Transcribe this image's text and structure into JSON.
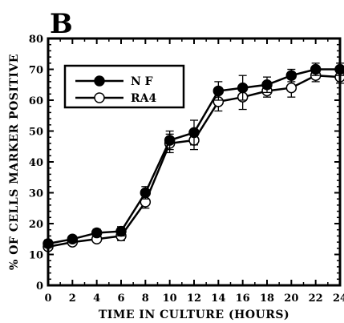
{
  "panel_letter": "B",
  "chart_data": {
    "type": "line",
    "title": "",
    "xlabel": "TIME IN CULTURE (HOURS)",
    "ylabel": "% OF CELLS MARKER POSITIVE",
    "xlim": [
      0,
      24
    ],
    "ylim": [
      0,
      80
    ],
    "x_ticks": [
      0,
      2,
      4,
      6,
      8,
      10,
      12,
      14,
      16,
      18,
      20,
      22,
      24
    ],
    "y_ticks": [
      0,
      10,
      20,
      30,
      40,
      50,
      60,
      70,
      80
    ],
    "grid": false,
    "legend_position": "top-left",
    "x": [
      0,
      2,
      4,
      6,
      8,
      10,
      12,
      14,
      16,
      18,
      20,
      22,
      24
    ],
    "series": [
      {
        "name": "N F",
        "marker": "filled-circle",
        "color": "#000000",
        "values": [
          13.5,
          15,
          17,
          17.5,
          30,
          47,
          49.5,
          63,
          64,
          65,
          68,
          70,
          70
        ],
        "errors": [
          1.2,
          1.0,
          1.2,
          1.5,
          2.0,
          3.0,
          4.0,
          3.0,
          4.0,
          2.5,
          2.0,
          2.0,
          2.0
        ]
      },
      {
        "name": "RA4",
        "marker": "open-circle",
        "color": "#000000",
        "values": [
          12.5,
          14,
          15,
          16,
          27,
          46,
          47,
          59.5,
          61,
          63,
          64,
          68,
          67.5
        ],
        "errors": [
          1.0,
          1.0,
          1.0,
          1.5,
          2.0,
          3.0,
          3.0,
          3.0,
          4.0,
          2.0,
          3.0,
          2.0,
          2.0
        ]
      }
    ]
  }
}
